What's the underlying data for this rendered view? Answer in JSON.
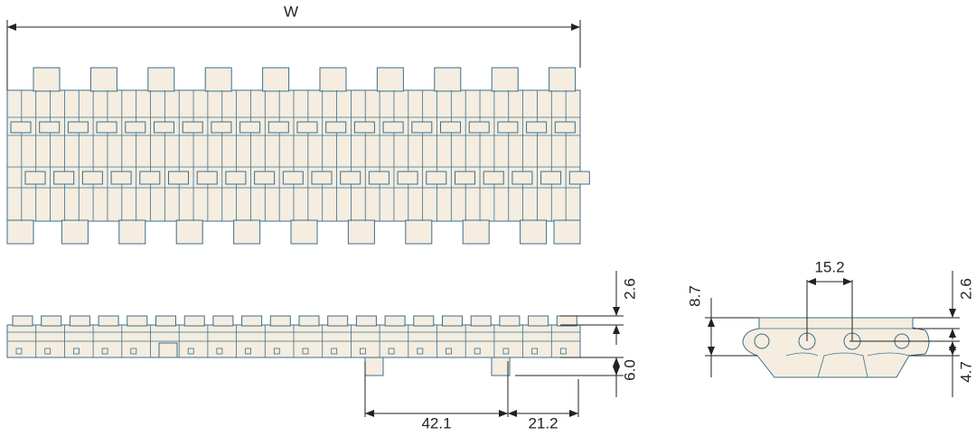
{
  "top_view": {
    "width_label": "W"
  },
  "side_view": {
    "top_height": "2.6",
    "hinge_height": "6.0",
    "pitch_long": "42.1",
    "pitch_short": "21.2"
  },
  "end_view": {
    "pin_spacing": "15.2",
    "total_height": "8.7",
    "top_height": "2.6",
    "bottom_height": "4.7"
  }
}
